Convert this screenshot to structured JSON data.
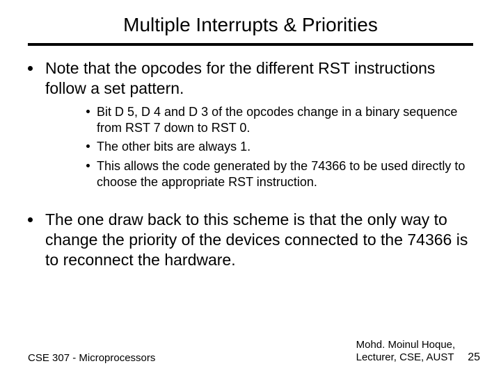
{
  "title": "Multiple Interrupts & Priorities",
  "bullets": {
    "b1": "Note that the opcodes for the different RST instructions follow a set pattern.",
    "b1_subs": {
      "s1": "Bit D 5, D 4  and D 3 of the opcodes change in a binary sequence from RST 7 down to RST 0.",
      "s2": "The other bits are always 1.",
      "s3": "This allows the code generated by the 74366 to be used directly to choose the appropriate RST instruction."
    },
    "b2": "The one draw back to this scheme is that the only way to change the priority of the devices connected to the 74366 is to reconnect the hardware."
  },
  "footer": {
    "course": "CSE 307 - Microprocessors",
    "author_line1": "Mohd. Moinul Hoque,",
    "author_line2": "Lecturer, CSE, AUST",
    "page": "25"
  },
  "colors": {
    "rule": "#000000",
    "text": "#000000",
    "bg": "#ffffff"
  }
}
